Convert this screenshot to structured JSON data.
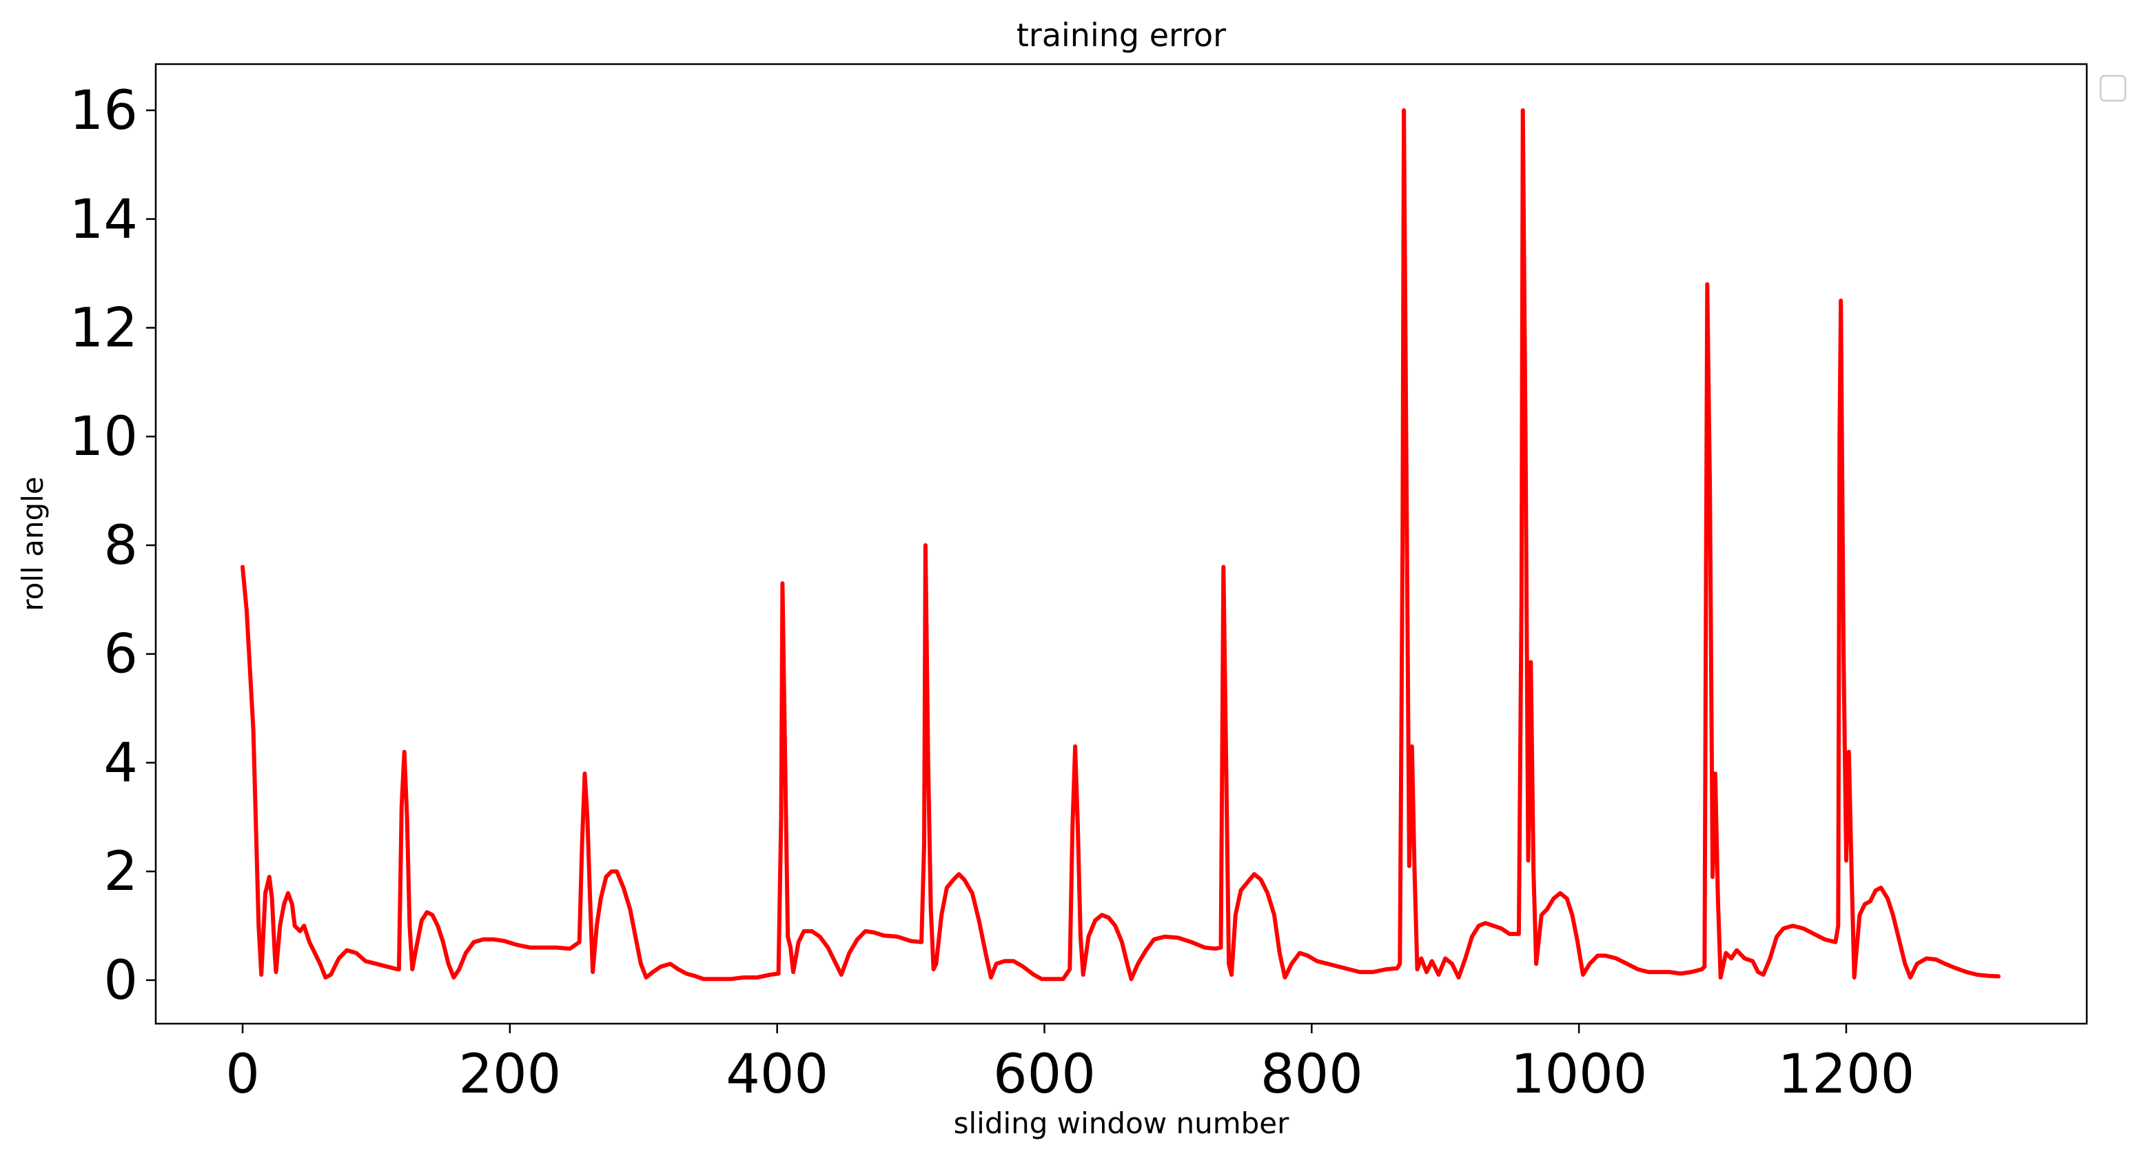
{
  "chart_data": {
    "type": "line",
    "title": "training error",
    "xlabel": "sliding window number",
    "ylabel": "roll angle",
    "xlim": [
      -65,
      1380
    ],
    "ylim": [
      -0.8,
      16.85
    ],
    "xticks": [
      0,
      200,
      400,
      600,
      800,
      1000,
      1200
    ],
    "yticks": [
      0,
      2,
      4,
      6,
      8,
      10,
      12,
      14,
      16
    ],
    "grid": false,
    "legend": {
      "placement": "outside-top-right",
      "entries": []
    },
    "series": [
      {
        "color": "#ff0000",
        "points": [
          [
            0,
            7.6
          ],
          [
            3,
            6.8
          ],
          [
            8,
            4.6
          ],
          [
            12,
            1.0
          ],
          [
            14,
            0.1
          ],
          [
            17,
            1.6
          ],
          [
            20,
            1.9
          ],
          [
            22,
            1.5
          ],
          [
            24,
            0.5
          ],
          [
            25,
            0.15
          ],
          [
            28,
            1.0
          ],
          [
            31,
            1.4
          ],
          [
            34,
            1.6
          ],
          [
            37,
            1.4
          ],
          [
            39,
            1.0
          ],
          [
            43,
            0.9
          ],
          [
            46,
            1.0
          ],
          [
            50,
            0.7
          ],
          [
            54,
            0.5
          ],
          [
            58,
            0.3
          ],
          [
            62,
            0.05
          ],
          [
            66,
            0.1
          ],
          [
            72,
            0.4
          ],
          [
            78,
            0.55
          ],
          [
            85,
            0.5
          ],
          [
            92,
            0.35
          ],
          [
            100,
            0.3
          ],
          [
            108,
            0.25
          ],
          [
            116,
            0.2
          ],
          [
            117,
            0.2
          ],
          [
            119,
            3.2
          ],
          [
            121,
            4.2
          ],
          [
            123,
            3.0
          ],
          [
            125,
            1.0
          ],
          [
            127,
            0.2
          ],
          [
            130,
            0.6
          ],
          [
            134,
            1.1
          ],
          [
            138,
            1.25
          ],
          [
            142,
            1.2
          ],
          [
            146,
            1.0
          ],
          [
            150,
            0.7
          ],
          [
            154,
            0.3
          ],
          [
            158,
            0.05
          ],
          [
            162,
            0.2
          ],
          [
            167,
            0.5
          ],
          [
            173,
            0.7
          ],
          [
            180,
            0.75
          ],
          [
            188,
            0.75
          ],
          [
            196,
            0.72
          ],
          [
            205,
            0.65
          ],
          [
            215,
            0.6
          ],
          [
            225,
            0.6
          ],
          [
            235,
            0.6
          ],
          [
            245,
            0.58
          ],
          [
            252,
            0.7
          ],
          [
            254,
            2.5
          ],
          [
            256,
            3.8
          ],
          [
            258,
            3.0
          ],
          [
            260,
            1.5
          ],
          [
            262,
            0.15
          ],
          [
            265,
            1.0
          ],
          [
            268,
            1.5
          ],
          [
            272,
            1.9
          ],
          [
            276,
            2.0
          ],
          [
            280,
            2.0
          ],
          [
            285,
            1.7
          ],
          [
            290,
            1.3
          ],
          [
            294,
            0.8
          ],
          [
            298,
            0.3
          ],
          [
            302,
            0.05
          ],
          [
            307,
            0.15
          ],
          [
            313,
            0.25
          ],
          [
            320,
            0.3
          ],
          [
            326,
            0.2
          ],
          [
            332,
            0.12
          ],
          [
            338,
            0.08
          ],
          [
            345,
            0.02
          ],
          [
            355,
            0.02
          ],
          [
            365,
            0.02
          ],
          [
            375,
            0.05
          ],
          [
            385,
            0.05
          ],
          [
            395,
            0.1
          ],
          [
            401,
            0.12
          ],
          [
            403,
            3.0
          ],
          [
            404,
            7.3
          ],
          [
            406,
            4.0
          ],
          [
            408,
            0.8
          ],
          [
            410,
            0.6
          ],
          [
            412,
            0.15
          ],
          [
            416,
            0.7
          ],
          [
            420,
            0.9
          ],
          [
            426,
            0.9
          ],
          [
            432,
            0.8
          ],
          [
            438,
            0.6
          ],
          [
            444,
            0.3
          ],
          [
            448,
            0.1
          ],
          [
            454,
            0.5
          ],
          [
            460,
            0.75
          ],
          [
            466,
            0.9
          ],
          [
            472,
            0.88
          ],
          [
            480,
            0.82
          ],
          [
            490,
            0.8
          ],
          [
            500,
            0.72
          ],
          [
            508,
            0.7
          ],
          [
            510,
            2.5
          ],
          [
            511,
            8.0
          ],
          [
            513,
            4.0
          ],
          [
            515,
            1.3
          ],
          [
            517,
            0.2
          ],
          [
            519,
            0.3
          ],
          [
            523,
            1.2
          ],
          [
            527,
            1.7
          ],
          [
            532,
            1.85
          ],
          [
            536,
            1.95
          ],
          [
            540,
            1.85
          ],
          [
            546,
            1.6
          ],
          [
            551,
            1.1
          ],
          [
            556,
            0.5
          ],
          [
            560,
            0.05
          ],
          [
            564,
            0.3
          ],
          [
            570,
            0.35
          ],
          [
            577,
            0.35
          ],
          [
            584,
            0.25
          ],
          [
            592,
            0.1
          ],
          [
            598,
            0.02
          ],
          [
            605,
            0.02
          ],
          [
            614,
            0.02
          ],
          [
            619,
            0.2
          ],
          [
            621,
            2.8
          ],
          [
            623,
            4.3
          ],
          [
            625,
            2.8
          ],
          [
            627,
            0.8
          ],
          [
            629,
            0.1
          ],
          [
            633,
            0.8
          ],
          [
            638,
            1.1
          ],
          [
            643,
            1.2
          ],
          [
            648,
            1.15
          ],
          [
            653,
            1.0
          ],
          [
            658,
            0.7
          ],
          [
            662,
            0.3
          ],
          [
            665,
            0.02
          ],
          [
            670,
            0.3
          ],
          [
            676,
            0.55
          ],
          [
            682,
            0.75
          ],
          [
            690,
            0.8
          ],
          [
            700,
            0.78
          ],
          [
            710,
            0.7
          ],
          [
            720,
            0.6
          ],
          [
            728,
            0.58
          ],
          [
            732,
            0.6
          ],
          [
            733,
            4.0
          ],
          [
            734,
            7.6
          ],
          [
            736,
            4.0
          ],
          [
            738,
            0.3
          ],
          [
            740,
            0.1
          ],
          [
            743,
            1.2
          ],
          [
            747,
            1.65
          ],
          [
            752,
            1.8
          ],
          [
            757,
            1.95
          ],
          [
            762,
            1.85
          ],
          [
            767,
            1.6
          ],
          [
            772,
            1.2
          ],
          [
            776,
            0.5
          ],
          [
            780,
            0.05
          ],
          [
            785,
            0.3
          ],
          [
            791,
            0.5
          ],
          [
            797,
            0.45
          ],
          [
            804,
            0.35
          ],
          [
            812,
            0.3
          ],
          [
            820,
            0.25
          ],
          [
            828,
            0.2
          ],
          [
            836,
            0.15
          ],
          [
            846,
            0.15
          ],
          [
            856,
            0.2
          ],
          [
            864,
            0.22
          ],
          [
            866,
            0.3
          ],
          [
            868,
            8.0
          ],
          [
            869,
            16.0
          ],
          [
            871,
            9.0
          ],
          [
            873,
            2.1
          ],
          [
            875,
            4.3
          ],
          [
            877,
            2.0
          ],
          [
            879,
            0.2
          ],
          [
            882,
            0.4
          ],
          [
            886,
            0.15
          ],
          [
            890,
            0.35
          ],
          [
            895,
            0.1
          ],
          [
            900,
            0.4
          ],
          [
            905,
            0.3
          ],
          [
            910,
            0.05
          ],
          [
            915,
            0.4
          ],
          [
            920,
            0.8
          ],
          [
            925,
            1.0
          ],
          [
            930,
            1.05
          ],
          [
            936,
            1.0
          ],
          [
            942,
            0.95
          ],
          [
            948,
            0.85
          ],
          [
            955,
            0.85
          ],
          [
            957,
            7.0
          ],
          [
            958,
            16.0
          ],
          [
            960,
            10.0
          ],
          [
            962,
            2.2
          ],
          [
            964,
            5.85
          ],
          [
            966,
            2.0
          ],
          [
            968,
            0.3
          ],
          [
            972,
            1.2
          ],
          [
            976,
            1.3
          ],
          [
            981,
            1.5
          ],
          [
            986,
            1.6
          ],
          [
            991,
            1.5
          ],
          [
            995,
            1.2
          ],
          [
            999,
            0.7
          ],
          [
            1003,
            0.1
          ],
          [
            1008,
            0.3
          ],
          [
            1014,
            0.45
          ],
          [
            1020,
            0.45
          ],
          [
            1028,
            0.4
          ],
          [
            1036,
            0.3
          ],
          [
            1044,
            0.2
          ],
          [
            1052,
            0.15
          ],
          [
            1060,
            0.15
          ],
          [
            1068,
            0.15
          ],
          [
            1076,
            0.12
          ],
          [
            1084,
            0.15
          ],
          [
            1092,
            0.2
          ],
          [
            1094,
            0.25
          ],
          [
            1095,
            7.0
          ],
          [
            1096,
            12.8
          ],
          [
            1098,
            9.0
          ],
          [
            1100,
            1.9
          ],
          [
            1102,
            3.8
          ],
          [
            1104,
            1.5
          ],
          [
            1106,
            0.05
          ],
          [
            1110,
            0.5
          ],
          [
            1114,
            0.4
          ],
          [
            1118,
            0.55
          ],
          [
            1124,
            0.4
          ],
          [
            1130,
            0.35
          ],
          [
            1134,
            0.15
          ],
          [
            1138,
            0.1
          ],
          [
            1143,
            0.4
          ],
          [
            1148,
            0.8
          ],
          [
            1153,
            0.95
          ],
          [
            1160,
            1.0
          ],
          [
            1168,
            0.95
          ],
          [
            1176,
            0.85
          ],
          [
            1184,
            0.75
          ],
          [
            1192,
            0.7
          ],
          [
            1194,
            1.0
          ],
          [
            1195,
            10.0
          ],
          [
            1196,
            12.5
          ],
          [
            1198,
            6.0
          ],
          [
            1200,
            2.2
          ],
          [
            1202,
            4.2
          ],
          [
            1204,
            2.0
          ],
          [
            1206,
            0.05
          ],
          [
            1210,
            1.2
          ],
          [
            1214,
            1.4
          ],
          [
            1218,
            1.45
          ],
          [
            1222,
            1.65
          ],
          [
            1226,
            1.7
          ],
          [
            1231,
            1.5
          ],
          [
            1235,
            1.2
          ],
          [
            1240,
            0.7
          ],
          [
            1244,
            0.3
          ],
          [
            1248,
            0.05
          ],
          [
            1253,
            0.3
          ],
          [
            1260,
            0.4
          ],
          [
            1267,
            0.38
          ],
          [
            1274,
            0.3
          ],
          [
            1282,
            0.22
          ],
          [
            1290,
            0.15
          ],
          [
            1298,
            0.1
          ],
          [
            1306,
            0.08
          ],
          [
            1314,
            0.07
          ]
        ]
      }
    ]
  }
}
